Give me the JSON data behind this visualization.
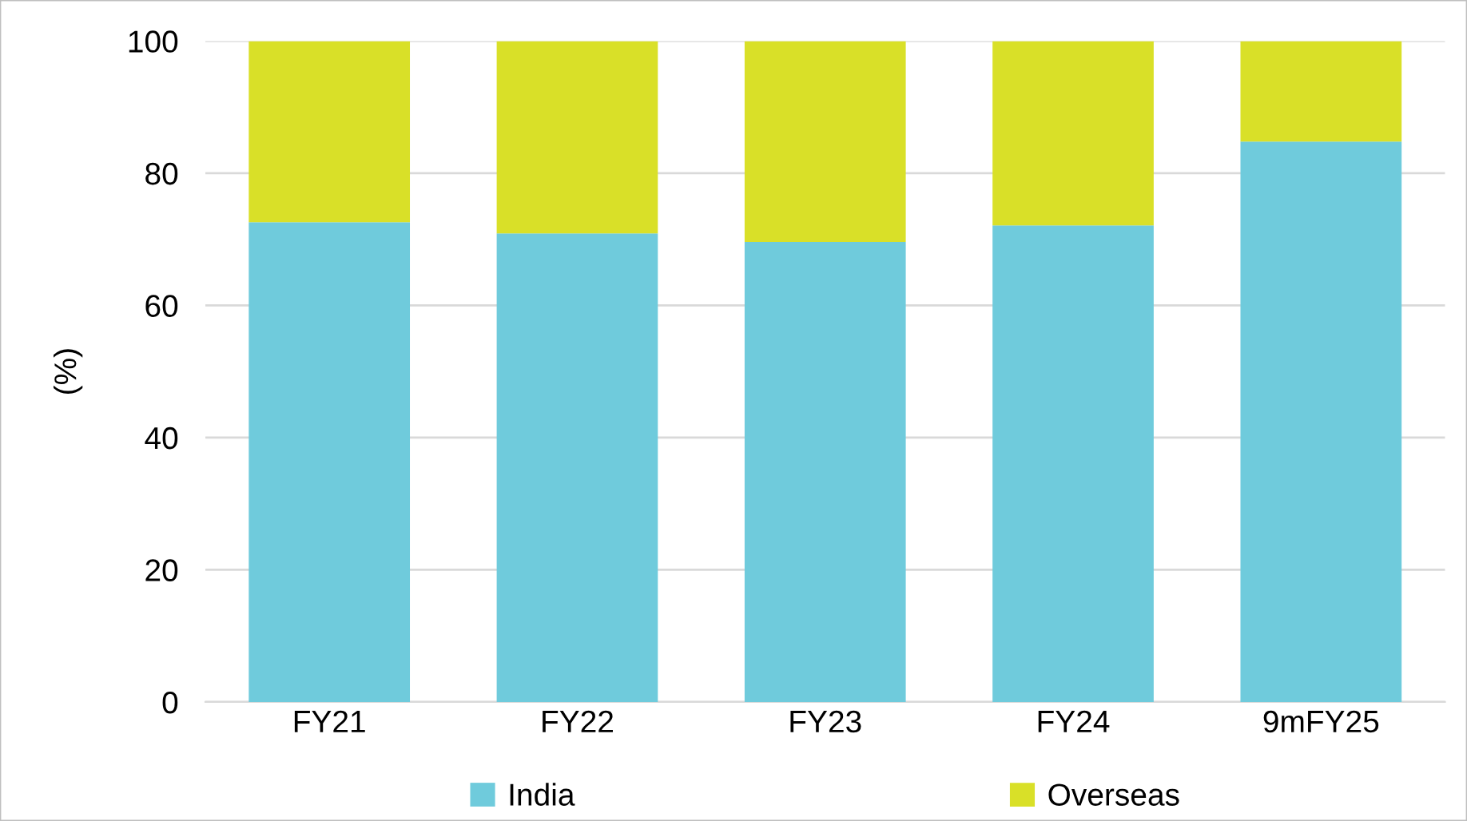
{
  "chart_data": {
    "type": "bar",
    "stacked": true,
    "ylabel": "(%)",
    "categories": [
      "FY21",
      "FY22",
      "FY23",
      "FY24",
      "9mFY25"
    ],
    "series": [
      {
        "name": "India",
        "color": "#6fcbdc",
        "values": [
          72.6,
          70.9,
          69.6,
          72.1,
          84.8
        ]
      },
      {
        "name": "Overseas",
        "color": "#d9e028",
        "values": [
          27.4,
          29.1,
          30.4,
          27.9,
          15.2
        ]
      }
    ],
    "ylim": [
      0,
      100
    ],
    "yticks": [
      0,
      20,
      40,
      60,
      80,
      100
    ],
    "grid": "y",
    "legend": "bottom"
  }
}
